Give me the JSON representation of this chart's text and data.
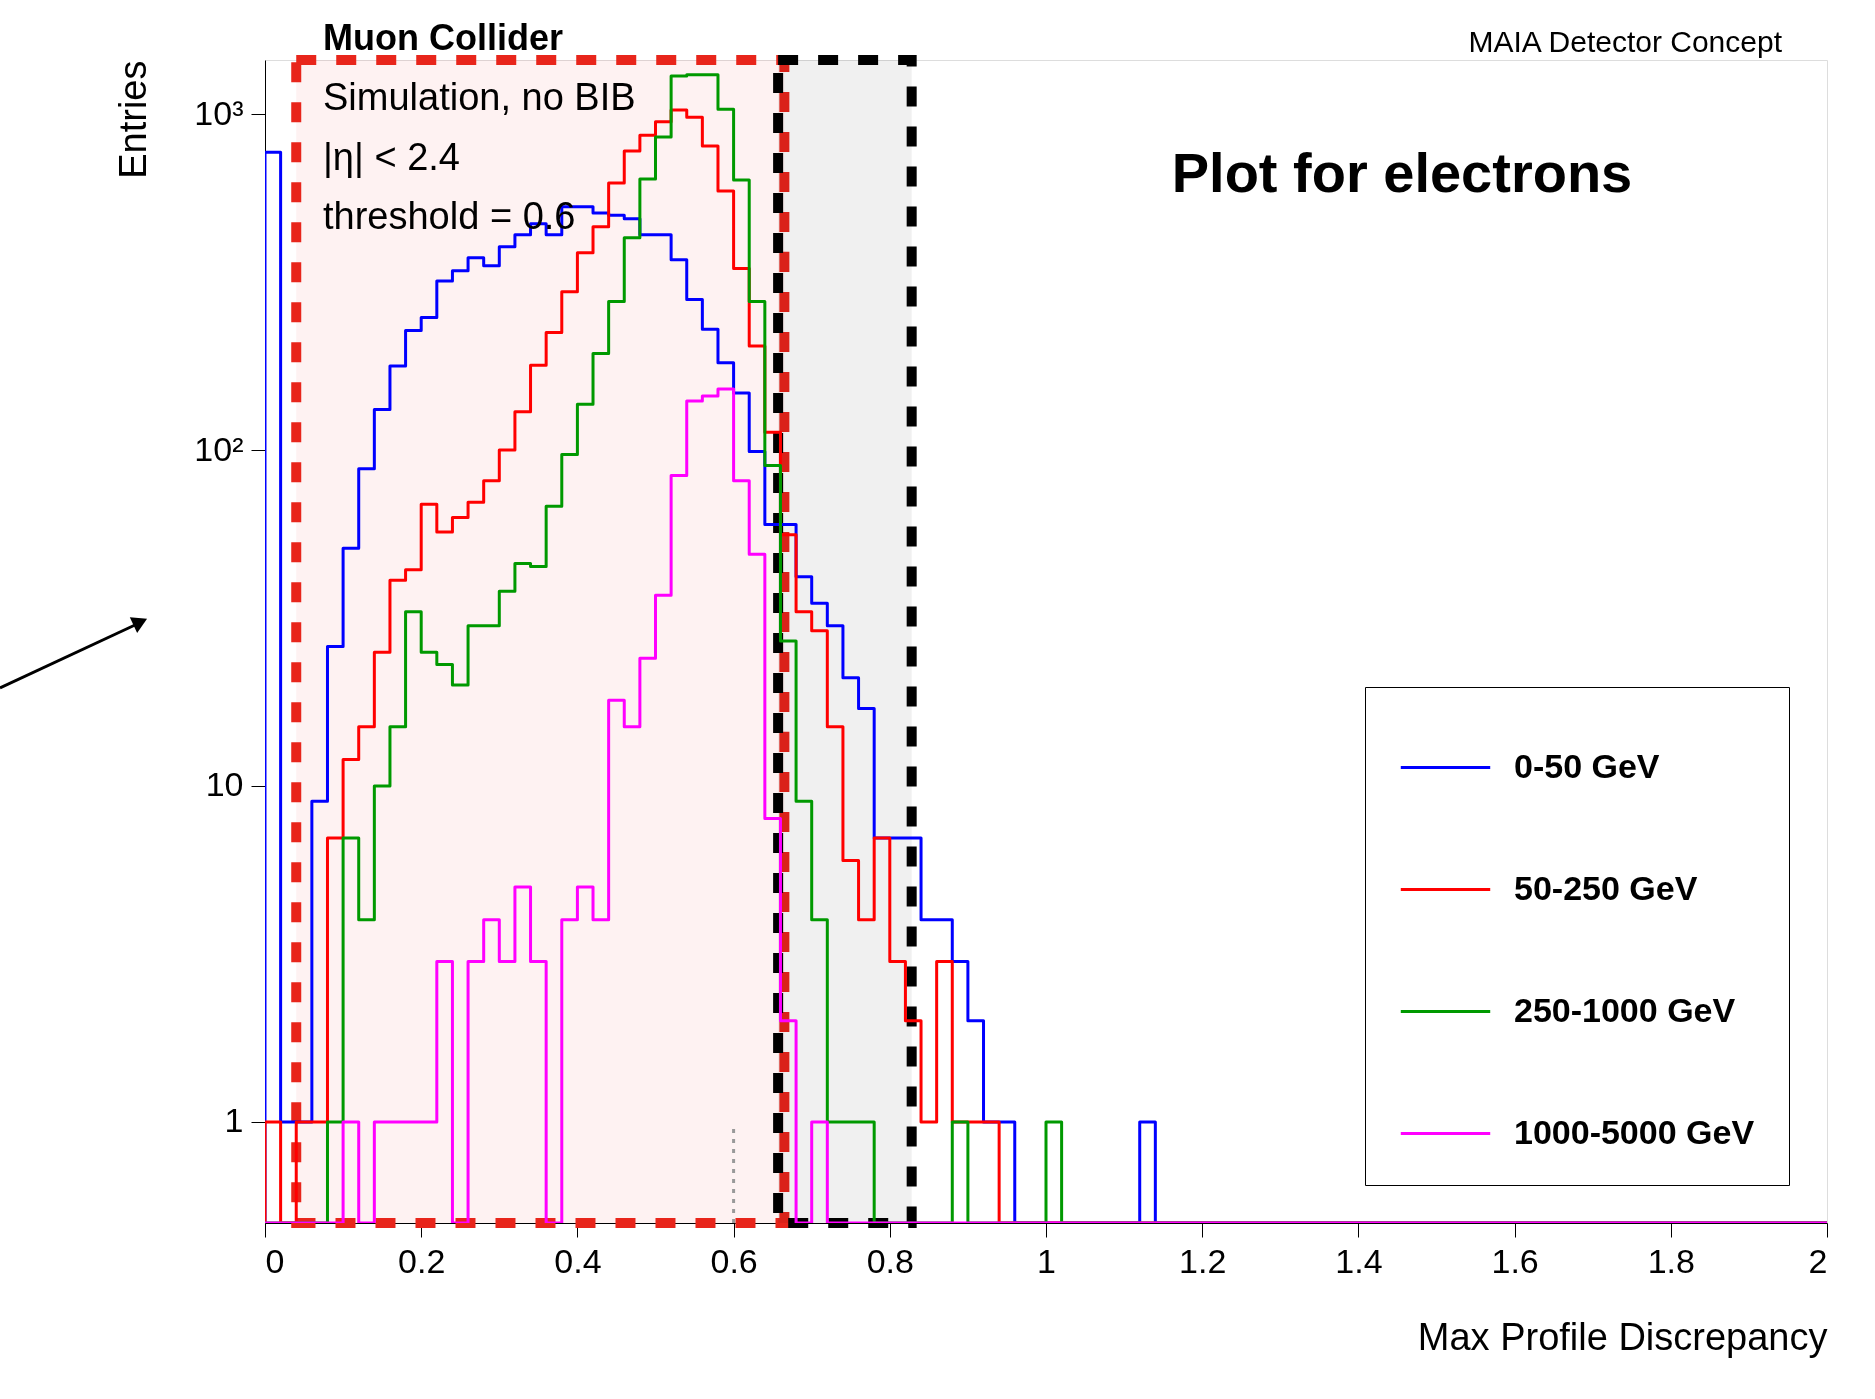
{
  "chart_data": {
    "type": "histogram",
    "xlabel": "Max Profile Discrepancy",
    "ylabel": "Entries",
    "annotations": [
      "Muon Collider",
      "MAIA Detector Concept",
      "Simulation, no BIB",
      "|η| < 2.4",
      "threshold = 0.6",
      "Plot for electrons"
    ],
    "bins": [
      0,
      0.02,
      0.04,
      0.06,
      0.08,
      0.1,
      0.12,
      0.14,
      0.16,
      0.18,
      0.2,
      0.22,
      0.24,
      0.26,
      0.28,
      0.3,
      0.32,
      0.34,
      0.36,
      0.38,
      0.4,
      0.42,
      0.44,
      0.46,
      0.48,
      0.5,
      0.52,
      0.54,
      0.56,
      0.58,
      0.6,
      0.62,
      0.64,
      0.66,
      0.68,
      0.7,
      0.72,
      0.74,
      0.76,
      0.78,
      0.8,
      0.82,
      0.84,
      0.86,
      0.88,
      0.9,
      0.92,
      0.94,
      0.96,
      0.98,
      1,
      1.02,
      1.04,
      1.06,
      1.08,
      1.1,
      1.12,
      1.14,
      1.16,
      1.18,
      1.2,
      1.22,
      1.24,
      1.26,
      1.28,
      1.3,
      1.32,
      1.34,
      1.36,
      1.38,
      1.4,
      1.42,
      1.44,
      1.46,
      1.48,
      1.5,
      1.52,
      1.54,
      1.56,
      1.58,
      1.6,
      1.62,
      1.64,
      1.66,
      1.68,
      1.7,
      1.72,
      1.74,
      1.76,
      1.78,
      1.8,
      1.82,
      1.84,
      1.86,
      1.88,
      1.9,
      1.92,
      1.94,
      1.96,
      1.98,
      2
    ],
    "series": [
      {
        "name": "0-50 GeV",
        "color": "#0000ff",
        "values": [
          770,
          1,
          1,
          9,
          26,
          51,
          88,
          132,
          178,
          227,
          248,
          319,
          342,
          374,
          354,
          403,
          438,
          472,
          438,
          530,
          530,
          508,
          500,
          488,
          438,
          438,
          369,
          281,
          229,
          182,
          148,
          99,
          60,
          60,
          42,
          35,
          30,
          21,
          17,
          7,
          7,
          7,
          4,
          4,
          3,
          2,
          1,
          1,
          null,
          null,
          null,
          null,
          null,
          null,
          null,
          null,
          1,
          null,
          null,
          null,
          null,
          null,
          null,
          null,
          null,
          null,
          null,
          null,
          null,
          null,
          null,
          null,
          null,
          null,
          null,
          null,
          null,
          null,
          null,
          null,
          null,
          null,
          null,
          null,
          null,
          null,
          null,
          null,
          null,
          null,
          null,
          null,
          null,
          null,
          null,
          null,
          null,
          null,
          null,
          null
        ]
      },
      {
        "name": "50-250 GeV",
        "color": "#ff0000",
        "values": [
          1,
          null,
          1,
          1,
          7,
          12,
          15,
          25,
          41,
          44,
          69,
          57,
          63,
          70,
          81,
          100,
          130,
          179,
          224,
          296,
          387,
          462,
          624,
          777,
          866,
          950,
          1030,
          980,
          804,
          591,
          347,
          204,
          113,
          56,
          33,
          29,
          15,
          6,
          4,
          7,
          3,
          2,
          1,
          3,
          1,
          1,
          1,
          null,
          null,
          null,
          null,
          null,
          null,
          null,
          null,
          null,
          null,
          null,
          null,
          null,
          null,
          null,
          null,
          null,
          null,
          null,
          null,
          null,
          null,
          null,
          null,
          null,
          null,
          null,
          null,
          null,
          null,
          null,
          null,
          null,
          null,
          null,
          null,
          null,
          null,
          null,
          null,
          null,
          null,
          null,
          null,
          null,
          null,
          null,
          null,
          null,
          null,
          null,
          null,
          null
        ]
      },
      {
        "name": "250-1000 GeV",
        "color": "#009900",
        "values": [
          null,
          null,
          null,
          null,
          1,
          7,
          4,
          10,
          15,
          33,
          25,
          23,
          20,
          30,
          30,
          38,
          46,
          45,
          68,
          97,
          137,
          194,
          277,
          429,
          641,
          855,
          1300,
          1310,
          1310,
          1035,
          637,
          277,
          90,
          27,
          9,
          4,
          1,
          1,
          1,
          null,
          null,
          null,
          null,
          null,
          1,
          null,
          null,
          null,
          null,
          null,
          1,
          null,
          null,
          null,
          null,
          null,
          null,
          null,
          null,
          null,
          null,
          null,
          null,
          null,
          null,
          null,
          null,
          null,
          null,
          null,
          null,
          null,
          null,
          null,
          null,
          null,
          null,
          null,
          null,
          null,
          null,
          null,
          null,
          null,
          null,
          null,
          null,
          null,
          null,
          null,
          null,
          null,
          null,
          null,
          null,
          null,
          null,
          null,
          null,
          null
        ]
      },
      {
        "name": "1000-5000 GeV",
        "color": "#ff00ff",
        "values": [
          null,
          null,
          null,
          null,
          null,
          1,
          null,
          1,
          1,
          1,
          1,
          3,
          null,
          3,
          4,
          3,
          5,
          3,
          null,
          4,
          5,
          4,
          18,
          15,
          24,
          37,
          84,
          140,
          145,
          152,
          81,
          49,
          8,
          2,
          null,
          1,
          null,
          null,
          null,
          null,
          null,
          null,
          null,
          null,
          null,
          null,
          null,
          null,
          null,
          null,
          null,
          null,
          null,
          null,
          null,
          null,
          null,
          null,
          null,
          null,
          null,
          null,
          null,
          null,
          null,
          null,
          null,
          null,
          null,
          null,
          null,
          null,
          null,
          null,
          null,
          null,
          null,
          null,
          null,
          null,
          null,
          null,
          null,
          null,
          null,
          null,
          null,
          null,
          null,
          null,
          null,
          null,
          null,
          null,
          null,
          null,
          null,
          null,
          null,
          null
        ]
      }
    ],
    "xlim": [
      0,
      2
    ],
    "xticks": [
      0,
      0.2,
      0.4,
      0.6,
      0.8,
      1,
      1.2,
      1.4,
      1.6,
      1.8,
      2
    ],
    "ylim": [
      0.5,
      1450
    ],
    "yticks": [
      1,
      10,
      {
        "value": 100,
        "label": "10²"
      },
      {
        "value": 1000,
        "label": "10³"
      }
    ],
    "log": "y",
    "grid": false,
    "legend": "bottom right",
    "ref_lines": [
      {
        "axis": "x",
        "value": 0.6,
        "color": "#999999",
        "line_style": "dotted"
      }
    ],
    "bands": [
      {
        "axis": "x",
        "from": 0.04,
        "to": 0.665,
        "color": "#e8251b"
      },
      {
        "axis": "x",
        "from": 0.657,
        "to": 0.828,
        "color": "#000000"
      }
    ]
  }
}
